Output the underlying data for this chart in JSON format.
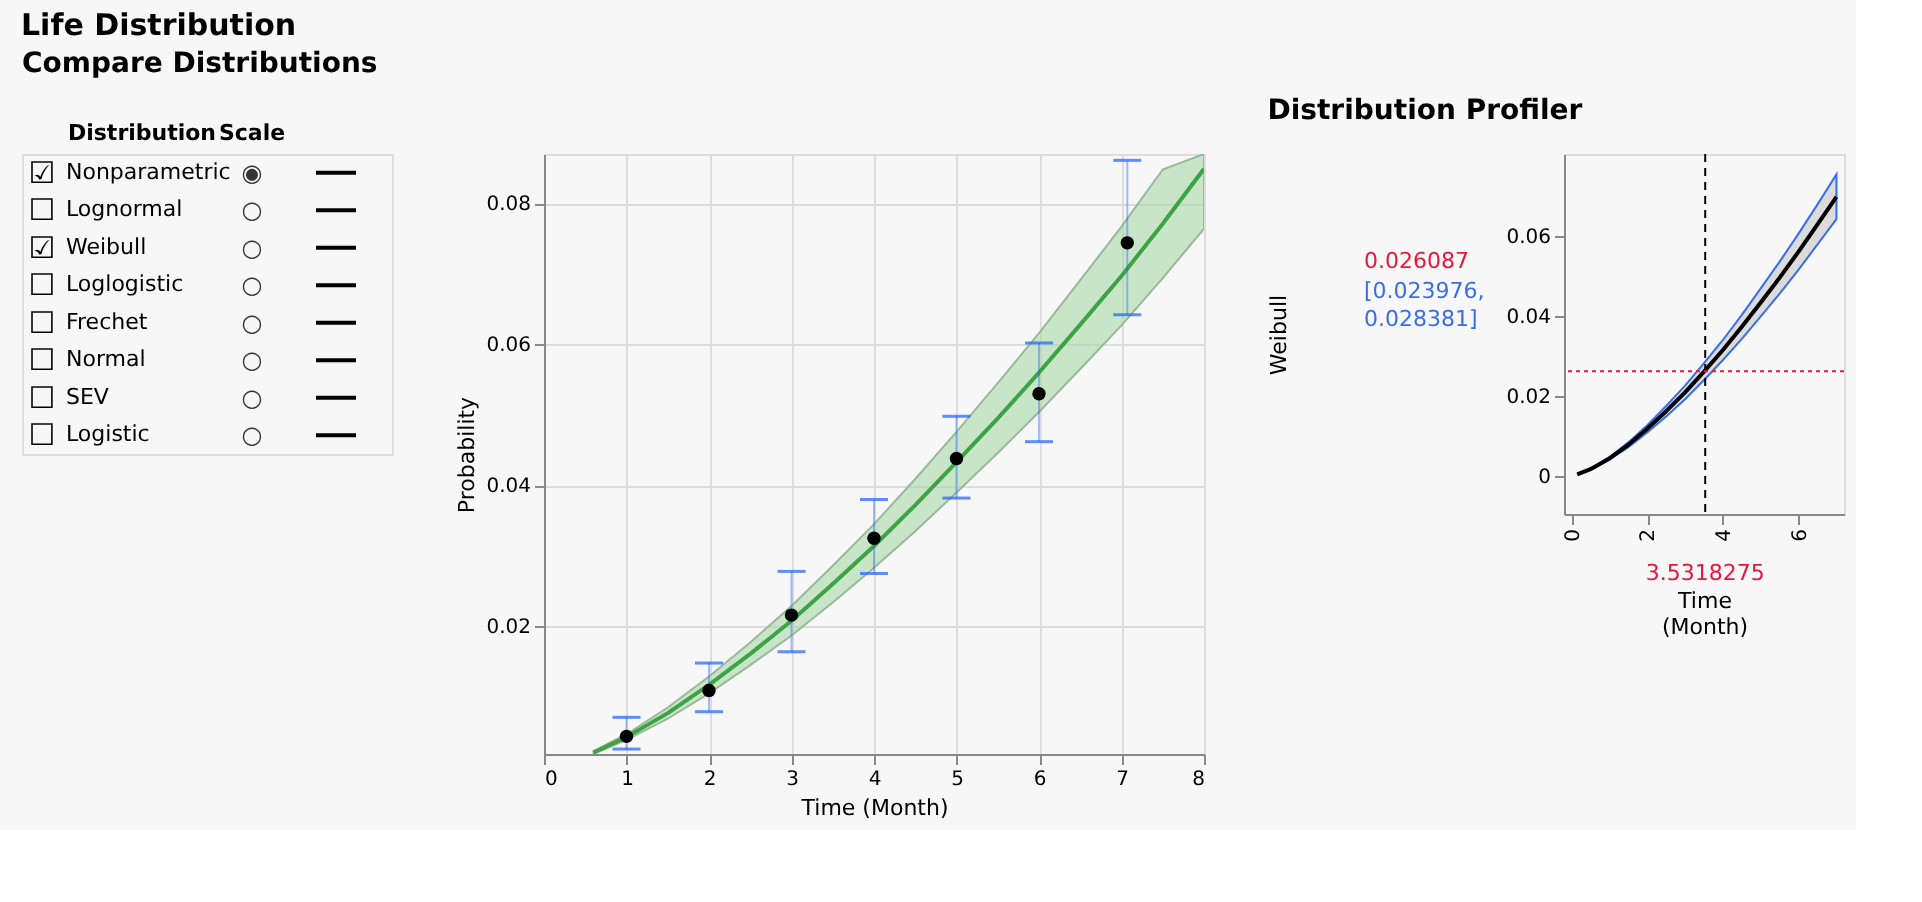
{
  "chart_data": [
    {
      "type": "other",
      "title": "Life Distribution",
      "subtitle": "Compare Distributions",
      "annotations": [
        "Distribution",
        "Scale"
      ],
      "categories": [
        "Nonparametric",
        "Lognormal",
        "Weibull",
        "Loglogistic",
        "Frechet",
        "Normal",
        "SEV",
        "Logistic"
      ],
      "cell_labels": [
        [
          "☑",
          "◉"
        ],
        [
          "☐",
          "○"
        ],
        [
          "☑",
          "○"
        ],
        [
          "☐",
          "○"
        ],
        [
          "☐",
          "○"
        ],
        [
          "☐",
          "○"
        ],
        [
          "☐",
          "○"
        ],
        [
          "☐",
          "○"
        ]
      ]
    },
    {
      "type": "line",
      "xlabel": "Time (Month)",
      "ylabel": "Probability",
      "xlim": [
        0,
        8
      ],
      "xticks": [
        0,
        1,
        2,
        3,
        4,
        5,
        6,
        7,
        8
      ],
      "ylim": [
        0.0019,
        0.087
      ],
      "yticks": [
        0.02,
        0.04,
        0.06,
        0.08
      ],
      "grid": true,
      "series": [
        {
          "type": "line",
          "color": "#3ea346",
          "x": [
            0.6,
            1,
            1.5,
            2,
            2.5,
            3,
            3.5,
            4,
            4.5,
            5,
            5.5,
            6,
            6.5,
            7,
            7.5,
            8
          ],
          "values": [
            0.0021,
            0.0043,
            0.0077,
            0.0117,
            0.0161,
            0.0208,
            0.026,
            0.0314,
            0.0372,
            0.0433,
            0.0495,
            0.056,
            0.0628,
            0.0697,
            0.0771,
            0.0849
          ],
          "lower": [
            0.0019,
            0.0039,
            0.0069,
            0.0105,
            0.0145,
            0.0187,
            0.0234,
            0.0283,
            0.0335,
            0.039,
            0.0446,
            0.0504,
            0.0565,
            0.0627,
            0.0694,
            0.0764
          ],
          "upper": [
            0.0023,
            0.0047,
            0.0085,
            0.0129,
            0.0177,
            0.0229,
            0.0286,
            0.0345,
            0.0409,
            0.0476,
            0.0545,
            0.0616,
            0.0691,
            0.0767,
            0.0848,
            0.087
          ]
        },
        {
          "type": "scatter",
          "color": "#000000",
          "x": [
            1,
            2,
            3,
            4,
            5,
            6,
            7.07
          ],
          "values": [
            0.0044,
            0.0109,
            0.0216,
            0.0325,
            0.0438,
            0.053,
            0.0744
          ],
          "errors": [
            [
              0.0026,
              0.0071
            ],
            [
              0.0079,
              0.0148
            ],
            [
              0.0164,
              0.0278
            ],
            [
              0.0275,
              0.038
            ],
            [
              0.0382,
              0.0498
            ],
            [
              0.0462,
              0.0602
            ],
            [
              0.0642,
              0.0861
            ]
          ]
        }
      ]
    },
    {
      "type": "line",
      "title": "Distribution Profiler",
      "xlabel": "Time (Month)",
      "ylabel": "Weibull",
      "xlim": [
        -0.2,
        7.2
      ],
      "xticks": [
        0,
        2,
        4,
        6
      ],
      "ylim": [
        -0.0096,
        0.0804
      ],
      "yticks": [
        0,
        0.02,
        0.04,
        0.06
      ],
      "series": [
        {
          "color": "#000000",
          "x": [
            0.15,
            0.5,
            1,
            1.5,
            2,
            2.5,
            3,
            3.5,
            4,
            4.5,
            5,
            5.5,
            6,
            6.5,
            7
          ],
          "values": [
            0.0003,
            0.0016,
            0.0043,
            0.0077,
            0.0117,
            0.0161,
            0.0208,
            0.026,
            0.0314,
            0.0372,
            0.0433,
            0.0495,
            0.056,
            0.0628,
            0.0697
          ],
          "lower": [
            0.0003,
            0.0015,
            0.004,
            0.0071,
            0.0108,
            0.0148,
            0.0191,
            0.0239,
            0.0289,
            0.0342,
            0.0398,
            0.0455,
            0.0515,
            0.0578,
            0.0641
          ],
          "upper": [
            0.0003,
            0.0017,
            0.0046,
            0.0083,
            0.0126,
            0.0174,
            0.0225,
            0.0281,
            0.0339,
            0.0402,
            0.0468,
            0.0535,
            0.0605,
            0.0678,
            0.0753
          ]
        }
      ],
      "ref_lines": [
        {
          "axis": "x",
          "value": 3.5318275,
          "label": "3.5318275",
          "color": "#000000",
          "line_style": "dashed"
        },
        {
          "axis": "y",
          "value": 0.026087,
          "label": "0.026087",
          "color": "#e8173c",
          "line_style": "dotted"
        }
      ],
      "annotations": [
        "[0.023976, 0.028381]"
      ]
    }
  ]
}
